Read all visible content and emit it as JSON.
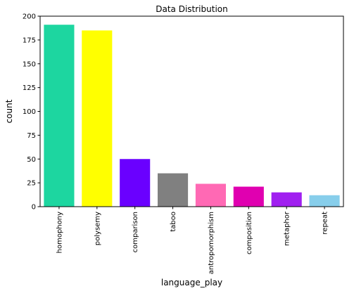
{
  "chart_data": {
    "type": "bar",
    "title": "Data Distribution",
    "xlabel": "language_play",
    "ylabel": "count",
    "categories": [
      "homophony",
      "polysemy",
      "comparison",
      "taboo",
      "antropomorphism",
      "composition",
      "metaphor",
      "repeat"
    ],
    "values": [
      191,
      185,
      50,
      35,
      24,
      21,
      15,
      12
    ],
    "colors": [
      "#1dd6a0",
      "#ffff00",
      "#6a00ff",
      "#808080",
      "#ff69b4",
      "#e000b0",
      "#a020f0",
      "#87ceeb"
    ],
    "ylim": [
      0,
      200
    ],
    "yticks": [
      0,
      25,
      50,
      75,
      100,
      125,
      150,
      175,
      200
    ],
    "grid": false,
    "legend": "none"
  }
}
